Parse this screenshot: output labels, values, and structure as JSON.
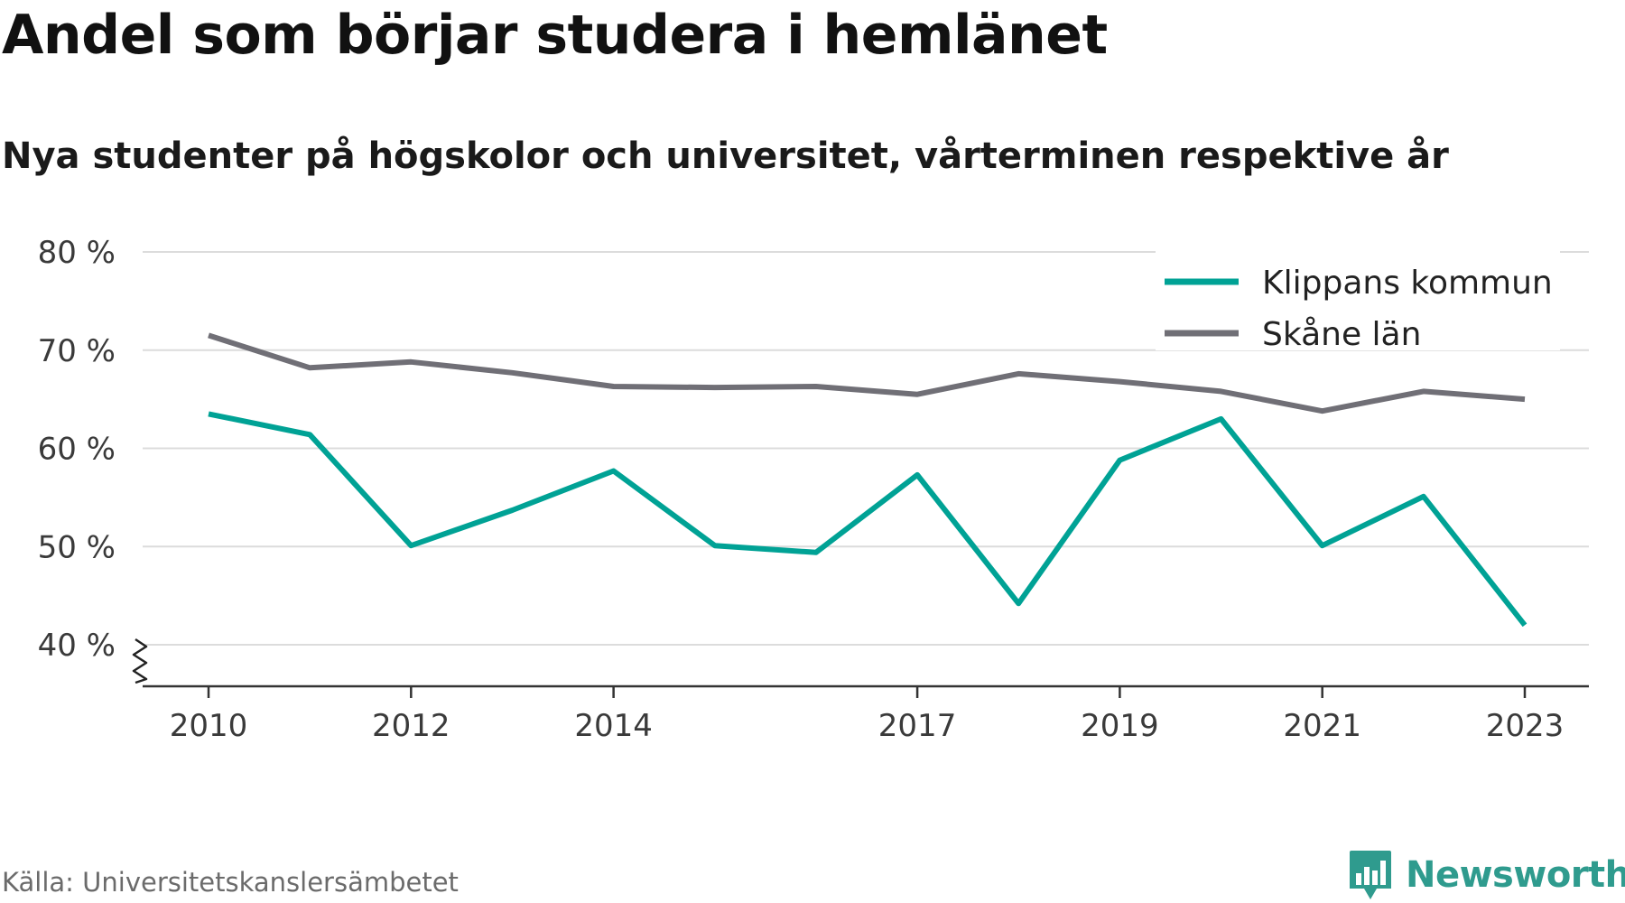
{
  "chart_data": {
    "type": "line",
    "title": "Andel som börjar studera i hemlänet",
    "subtitle": "Nya studenter på högskolor och universitet, vårterminen respektive år",
    "x": [
      2010,
      2011,
      2012,
      2013,
      2014,
      2015,
      2016,
      2017,
      2018,
      2019,
      2020,
      2021,
      2022,
      2023
    ],
    "x_tick_values": [
      2010,
      2012,
      2014,
      2017,
      2019,
      2021,
      2023
    ],
    "x_tick_labels": [
      "2010",
      "2012",
      "2014",
      "2017",
      "2019",
      "2021",
      "2023"
    ],
    "y_tick_values": [
      40,
      50,
      60,
      70,
      80
    ],
    "y_tick_labels": [
      "40 %",
      "50 %",
      "60 %",
      "70 %",
      "80 %"
    ],
    "ylim": [
      35.8,
      80
    ],
    "y_axis_break": true,
    "grid": true,
    "legend_position": "top-right",
    "series": [
      {
        "name": "Klippans kommun",
        "color": "#00a295",
        "values": [
          63.5,
          61.4,
          50.1,
          53.7,
          57.7,
          50.1,
          49.4,
          57.3,
          44.2,
          58.8,
          63.0,
          50.1,
          55.1,
          42.0
        ]
      },
      {
        "name": "Skåne län",
        "color": "#706f76",
        "values": [
          71.5,
          68.2,
          68.8,
          67.7,
          66.3,
          66.2,
          66.3,
          65.5,
          67.6,
          66.8,
          65.8,
          63.8,
          65.8,
          65.0
        ]
      }
    ]
  },
  "source": "Källa: Universitetskanslersämbetet",
  "brand": {
    "name": "Newsworthy",
    "color": "#2f9b8e",
    "icon": "bar-chart-bubble-icon"
  }
}
